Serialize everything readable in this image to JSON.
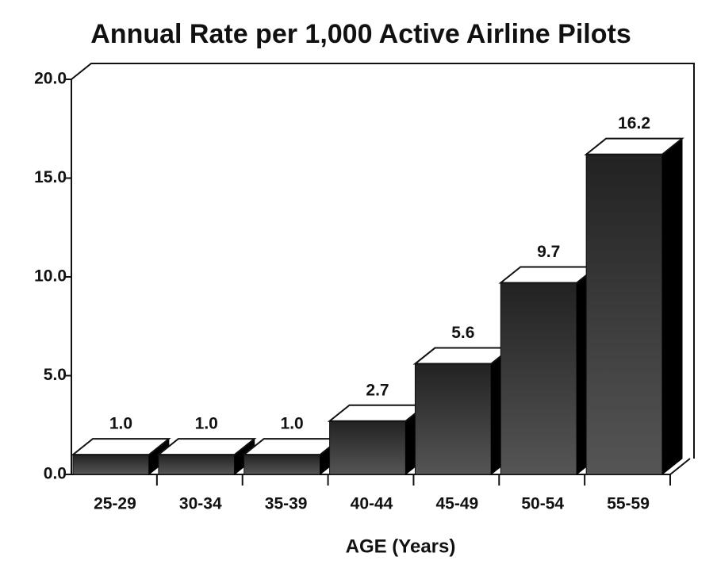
{
  "chart_data": {
    "type": "bar3d",
    "title": "Annual Rate per 1,000 Active Airline Pilots",
    "x_label": "AGE (Years)",
    "categories": [
      "25-29",
      "30-34",
      "35-39",
      "40-44",
      "45-49",
      "50-54",
      "55-59"
    ],
    "values": [
      1.0,
      1.0,
      1.0,
      2.7,
      5.6,
      9.7,
      16.2
    ],
    "value_labels": [
      "1.0",
      "1.0",
      "1.0",
      "2.7",
      "5.6",
      "9.7",
      "16.2"
    ],
    "color": "#3a3a3a",
    "ylim": [
      0,
      20
    ],
    "yticks": [
      {
        "value": 0,
        "label": "0.0"
      },
      {
        "value": 5,
        "label": "5.0"
      },
      {
        "value": 10,
        "label": "10.0"
      },
      {
        "value": 15,
        "label": "15.0"
      },
      {
        "value": 20,
        "label": "20.0"
      }
    ]
  }
}
